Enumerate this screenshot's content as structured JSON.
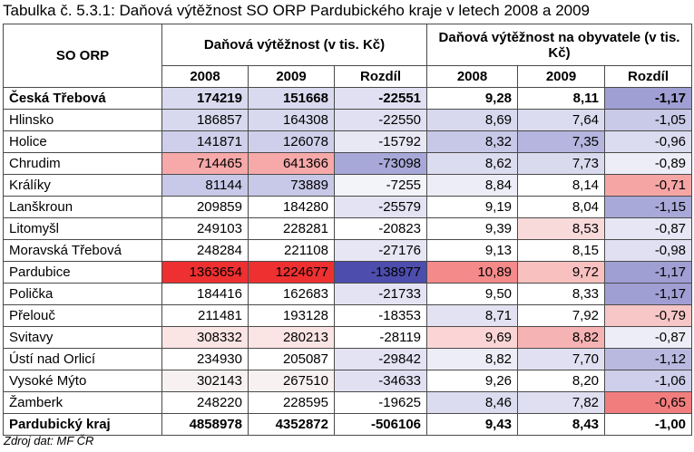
{
  "title": "Tabulka č. 5.3.1: Daňová výtěžnost SO ORP Pardubického kraje v letech 2008 a 2009",
  "headers": {
    "so_orp": "SO ORP",
    "group1": "Daňová výtěžnost (v tis. Kč)",
    "group2": "Daňová výtěžnost na obyvatele (v tis. Kč)",
    "year1": "2008",
    "year2": "2009",
    "diff": "Rozdíl"
  },
  "rows": [
    {
      "name": "Česká Třebová",
      "bold": true,
      "v2008": "174219",
      "v2009": "151668",
      "vdiff": "-22551",
      "p2008": "9,28",
      "p2009": "8,11",
      "pdiff": "-1,17"
    },
    {
      "name": "Hlinsko",
      "bold": false,
      "v2008": "186857",
      "v2009": "164308",
      "vdiff": "-22550",
      "p2008": "8,69",
      "p2009": "7,64",
      "pdiff": "-1,05"
    },
    {
      "name": "Holice",
      "bold": false,
      "v2008": "141871",
      "v2009": "126078",
      "vdiff": "-15792",
      "p2008": "8,32",
      "p2009": "7,35",
      "pdiff": "-0,96"
    },
    {
      "name": "Chrudim",
      "bold": false,
      "v2008": "714465",
      "v2009": "641366",
      "vdiff": "-73098",
      "p2008": "8,62",
      "p2009": "7,73",
      "pdiff": "-0,89"
    },
    {
      "name": "Králíky",
      "bold": false,
      "v2008": "81144",
      "v2009": "73889",
      "vdiff": "-7255",
      "p2008": "8,84",
      "p2009": "8,14",
      "pdiff": "-0,71"
    },
    {
      "name": "Lanškroun",
      "bold": false,
      "v2008": "209859",
      "v2009": "184280",
      "vdiff": "-25579",
      "p2008": "9,19",
      "p2009": "8,04",
      "pdiff": "-1,15"
    },
    {
      "name": "Litomyšl",
      "bold": false,
      "v2008": "249103",
      "v2009": "228281",
      "vdiff": "-20823",
      "p2008": "9,39",
      "p2009": "8,53",
      "pdiff": "-0,87"
    },
    {
      "name": "Moravská Třebová",
      "bold": false,
      "v2008": "248284",
      "v2009": "221108",
      "vdiff": "-27176",
      "p2008": "9,13",
      "p2009": "8,15",
      "pdiff": "-0,98"
    },
    {
      "name": "Pardubice",
      "bold": false,
      "v2008": "1363654",
      "v2009": "1224677",
      "vdiff": "-138977",
      "p2008": "10,89",
      "p2009": "9,72",
      "pdiff": "-1,17"
    },
    {
      "name": "Polička",
      "bold": false,
      "v2008": "184416",
      "v2009": "162683",
      "vdiff": "-21733",
      "p2008": "9,50",
      "p2009": "8,33",
      "pdiff": "-1,17"
    },
    {
      "name": "Přelouč",
      "bold": false,
      "v2008": "211481",
      "v2009": "193128",
      "vdiff": "-18353",
      "p2008": "8,71",
      "p2009": "7,92",
      "pdiff": "-0,79"
    },
    {
      "name": "Svitavy",
      "bold": false,
      "v2008": "308332",
      "v2009": "280213",
      "vdiff": "-28119",
      "p2008": "9,69",
      "p2009": "8,82",
      "pdiff": "-0,87"
    },
    {
      "name": "Ústí nad Orlicí",
      "bold": false,
      "v2008": "234930",
      "v2009": "205087",
      "vdiff": "-29842",
      "p2008": "8,82",
      "p2009": "7,70",
      "pdiff": "-1,12"
    },
    {
      "name": "Vysoké Mýto",
      "bold": false,
      "v2008": "302143",
      "v2009": "267510",
      "vdiff": "-34633",
      "p2008": "9,26",
      "p2009": "8,20",
      "pdiff": "-1,06"
    },
    {
      "name": "Žamberk",
      "bold": false,
      "v2008": "248220",
      "v2009": "228595",
      "vdiff": "-19625",
      "p2008": "8,46",
      "p2009": "7,82",
      "pdiff": "-0,65"
    },
    {
      "name": "Pardubický kraj",
      "bold": true,
      "v2008": "4858978",
      "v2009": "4352872",
      "vdiff": "-506106",
      "p2008": "9,43",
      "p2009": "8,43",
      "pdiff": "-1,00"
    }
  ],
  "cell_colors": [
    [
      "#ffffff",
      "#d9d9ef",
      "#d9d9ef",
      "#e0e0f2",
      "#ffffff",
      "#ffffff",
      "#9f9fd4"
    ],
    [
      "#ffffff",
      "#d8d8ee",
      "#d8d8ee",
      "#e0e0f2",
      "#d8d8ee",
      "#dcdcf0",
      "#c9c9e8"
    ],
    [
      "#ffffff",
      "#cfcfeb",
      "#cfcfeb",
      "#e8e8f5",
      "#c7c7e7",
      "#b5b5df",
      "#dcdcf0"
    ],
    [
      "#ffffff",
      "#f7a9a9",
      "#f7a9a9",
      "#a8a8d8",
      "#dcdcf0",
      "#dadaef",
      "#ededf7"
    ],
    [
      "#ffffff",
      "#c8c8e8",
      "#c8c8e8",
      "#f3f3fa",
      "#ededf7",
      "#ffffff",
      "#f6a5a5"
    ],
    [
      "#ffffff",
      "#ffffff",
      "#ffffff",
      "#e3e3f3",
      "#ffffff",
      "#ffffff",
      "#a9a9d9"
    ],
    [
      "#ffffff",
      "#ffffff",
      "#ffffff",
      "#ffffff",
      "#ffffff",
      "#f9dada",
      "#e6e6f4"
    ],
    [
      "#ffffff",
      "#ffffff",
      "#ffffff",
      "#e6e6f4",
      "#ffffff",
      "#ffffff",
      "#e0e0f2"
    ],
    [
      "#ffffff",
      "#ee3030",
      "#ee3030",
      "#4d4dae",
      "#f58a8a",
      "#f9c0c0",
      "#9f9fd4"
    ],
    [
      "#ffffff",
      "#ffffff",
      "#ffffff",
      "#e3e3f3",
      "#ffffff",
      "#ffffff",
      "#9f9fd4"
    ],
    [
      "#ffffff",
      "#ffffff",
      "#ffffff",
      "#ffffff",
      "#e2e2f2",
      "#ffffff",
      "#f7c6c6"
    ],
    [
      "#ffffff",
      "#fbe4e4",
      "#fbe4e4",
      "#ffffff",
      "#fbd5d5",
      "#f6b3b3",
      "#ededf7"
    ],
    [
      "#ffffff",
      "#ffffff",
      "#ffffff",
      "#e3e3f3",
      "#ededf7",
      "#e0e0f2",
      "#b9b9e0"
    ],
    [
      "#ffffff",
      "#f8f1f1",
      "#f8f1f1",
      "#e0e0f2",
      "#ffffff",
      "#ffffff",
      "#cfcfeb"
    ],
    [
      "#ffffff",
      "#ffffff",
      "#ffffff",
      "#ffffff",
      "#dcdcf0",
      "#dfdff1",
      "#f27d7d"
    ],
    [
      "#ffffff",
      "#ffffff",
      "#ffffff",
      "#ffffff",
      "#ffffff",
      "#ffffff",
      "#ffffff"
    ]
  ],
  "source": "Zdroj dat: MF ČR"
}
